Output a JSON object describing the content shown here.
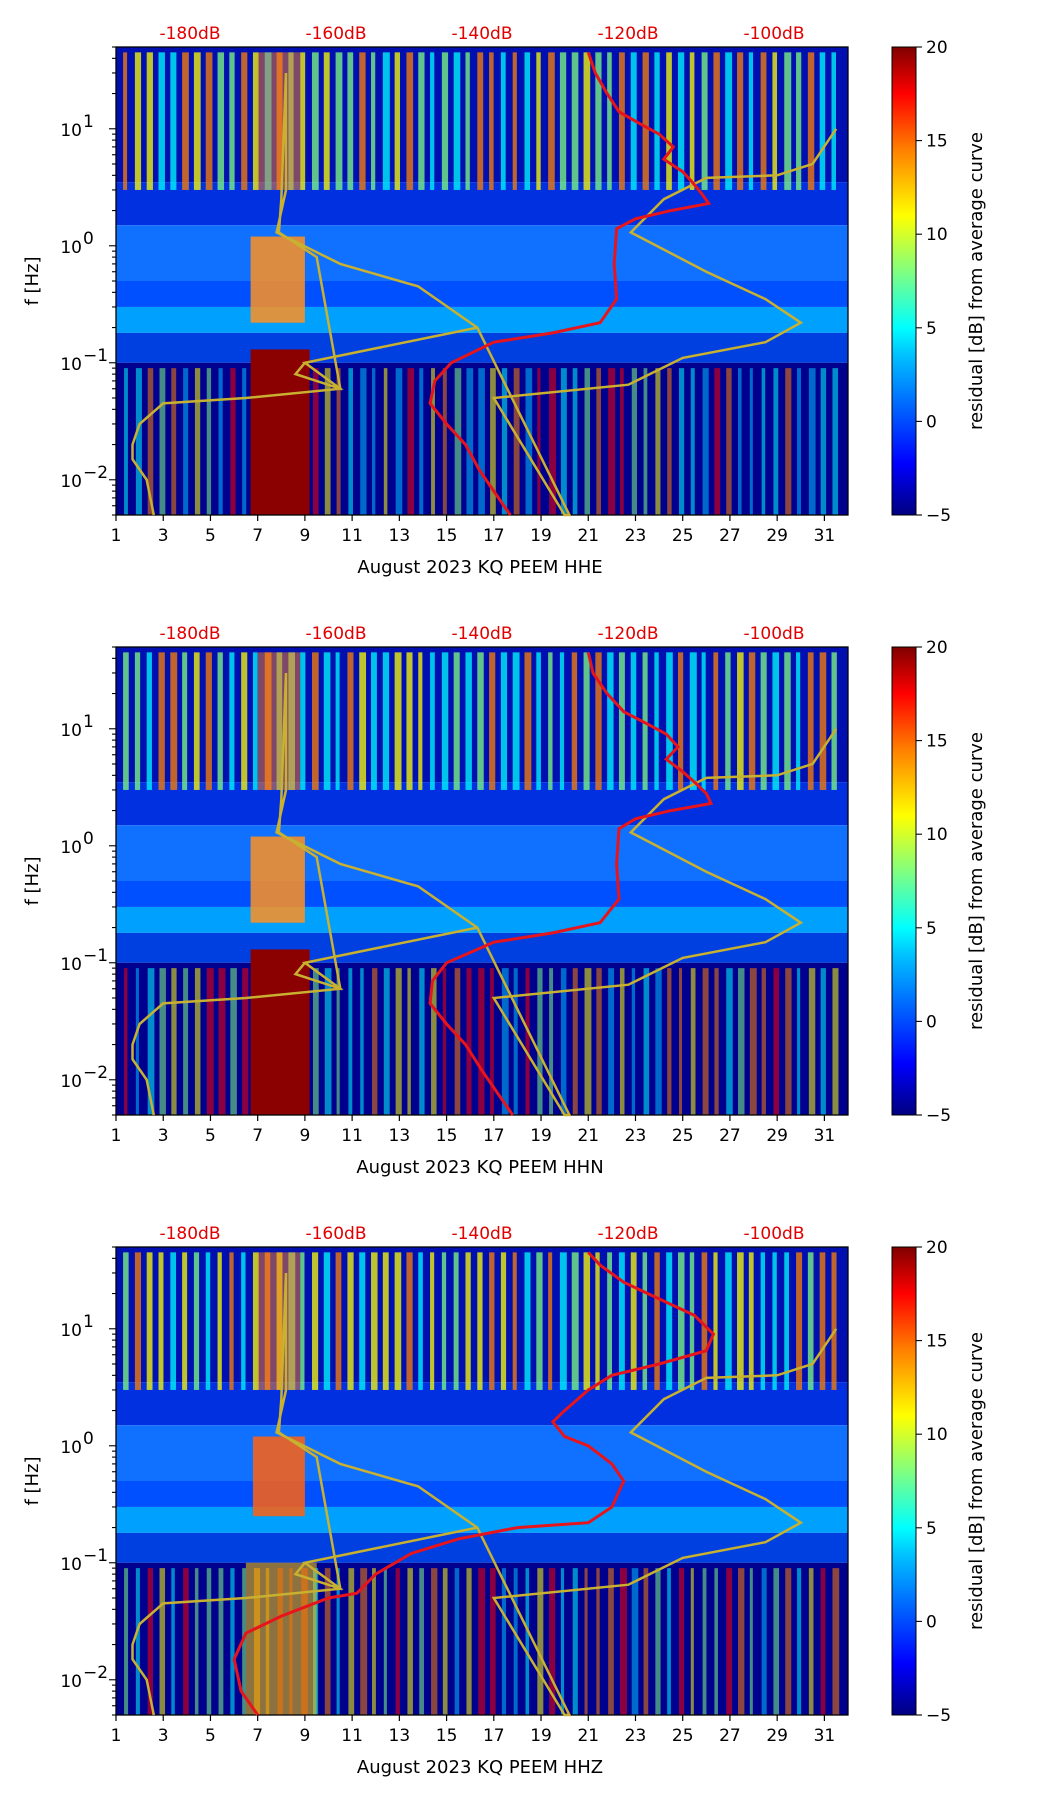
{
  "colors": {
    "curve_red": "#e8141c",
    "curve_olive": "#c8b030",
    "top_axis_text": "#e00000",
    "jet": [
      "#000080",
      "#0000ff",
      "#00c0ff",
      "#00ffff",
      "#80ff80",
      "#ffff00",
      "#ff8000",
      "#ff0000",
      "#800000"
    ]
  },
  "chart_data": [
    {
      "type": "heatmap",
      "title": "",
      "xlabel": "August 2023 KQ PEEM  HHE",
      "ylabel": "f [Hz]",
      "x_range": [
        1,
        32
      ],
      "x_ticks": [
        1,
        3,
        5,
        7,
        9,
        11,
        13,
        15,
        17,
        19,
        21,
        23,
        25,
        27,
        29,
        31
      ],
      "y_scale": "log",
      "y_range": [
        0.005,
        50
      ],
      "y_ticks": [
        {
          "value": 0.01,
          "base": "10",
          "exp": "−2"
        },
        {
          "value": 0.1,
          "base": "10",
          "exp": "−1"
        },
        {
          "value": 1,
          "base": "10",
          "exp": "0"
        },
        {
          "value": 10,
          "base": "10",
          "exp": "1"
        }
      ],
      "top_axis_labels": [
        "-180dB",
        "-160dB",
        "-140dB",
        "-120dB",
        "-100dB"
      ],
      "colorbar": {
        "label": "residual [dB] from average curve",
        "min": -5,
        "max": 20,
        "ticks": [
          "−5",
          "0",
          "5",
          "10",
          "15",
          "20"
        ]
      },
      "red_curve": [
        [
          21.0,
          45
        ],
        [
          21.3,
          30
        ],
        [
          21.8,
          20
        ],
        [
          22.3,
          14
        ],
        [
          23.2,
          11
        ],
        [
          24.0,
          9
        ],
        [
          24.6,
          7
        ],
        [
          24.2,
          5.5
        ],
        [
          25.0,
          4.3
        ],
        [
          25.4,
          3.5
        ],
        [
          25.8,
          2.8
        ],
        [
          26.1,
          2.3
        ],
        [
          24.5,
          2.0
        ],
        [
          23.0,
          1.7
        ],
        [
          22.2,
          1.4
        ],
        [
          22.1,
          0.7
        ],
        [
          22.2,
          0.35
        ],
        [
          21.5,
          0.22
        ],
        [
          19.5,
          0.18
        ],
        [
          17.0,
          0.15
        ],
        [
          15.2,
          0.1
        ],
        [
          14.5,
          0.07
        ],
        [
          14.3,
          0.045
        ],
        [
          15.0,
          0.03
        ],
        [
          15.8,
          0.02
        ],
        [
          16.4,
          0.012
        ],
        [
          17.0,
          0.008
        ],
        [
          17.7,
          0.005
        ]
      ],
      "olive_curve": [
        [
          31.5,
          10
        ],
        [
          30.5,
          5
        ],
        [
          29.0,
          4
        ],
        [
          26.0,
          3.8
        ],
        [
          24.2,
          2.5
        ],
        [
          22.8,
          1.3
        ],
        [
          26.0,
          0.6
        ],
        [
          28.5,
          0.35
        ],
        [
          30.0,
          0.22
        ],
        [
          28.5,
          0.15
        ],
        [
          25.0,
          0.11
        ],
        [
          22.7,
          0.065
        ],
        [
          17.0,
          0.05
        ],
        [
          20.0,
          0.005
        ],
        [
          20.2,
          0.005
        ],
        [
          16.3,
          0.2
        ],
        [
          13.8,
          0.45
        ],
        [
          10.5,
          0.7
        ],
        [
          7.8,
          1.3
        ],
        [
          8.2,
          3
        ],
        [
          8.2,
          30
        ],
        [
          8.0,
          2.5
        ],
        [
          7.9,
          1.3
        ],
        [
          9.5,
          0.8
        ],
        [
          10.5,
          0.06
        ],
        [
          8.6,
          0.08
        ],
        [
          9.0,
          0.1
        ],
        [
          16.3,
          0.2
        ],
        [
          9.0,
          0.1
        ],
        [
          10.5,
          0.06
        ],
        [
          6.5,
          0.05
        ],
        [
          3.0,
          0.045
        ],
        [
          2.0,
          0.03
        ],
        [
          1.7,
          0.02
        ],
        [
          1.7,
          0.015
        ],
        [
          2.3,
          0.01
        ],
        [
          2.6,
          0.005
        ]
      ]
    },
    {
      "type": "heatmap",
      "title": "",
      "xlabel": "August 2023 KQ PEEM  HHN",
      "ylabel": "f [Hz]",
      "x_range": [
        1,
        32
      ],
      "x_ticks": [
        1,
        3,
        5,
        7,
        9,
        11,
        13,
        15,
        17,
        19,
        21,
        23,
        25,
        27,
        29,
        31
      ],
      "y_scale": "log",
      "y_range": [
        0.005,
        50
      ],
      "y_ticks": [
        {
          "value": 0.01,
          "base": "10",
          "exp": "−2"
        },
        {
          "value": 0.1,
          "base": "10",
          "exp": "−1"
        },
        {
          "value": 1,
          "base": "10",
          "exp": "0"
        },
        {
          "value": 10,
          "base": "10",
          "exp": "1"
        }
      ],
      "top_axis_labels": [
        "-180dB",
        "-160dB",
        "-140dB",
        "-120dB",
        "-100dB"
      ],
      "colorbar": {
        "label": "residual [dB] from average curve",
        "min": -5,
        "max": 20,
        "ticks": [
          "−5",
          "0",
          "5",
          "10",
          "15",
          "20"
        ]
      },
      "red_curve": [
        [
          21.0,
          45
        ],
        [
          21.2,
          30
        ],
        [
          21.8,
          20
        ],
        [
          22.5,
          14
        ],
        [
          23.5,
          11
        ],
        [
          24.3,
          9
        ],
        [
          24.8,
          7
        ],
        [
          24.3,
          5.5
        ],
        [
          25.0,
          4.3
        ],
        [
          25.5,
          3.5
        ],
        [
          26.0,
          2.8
        ],
        [
          26.2,
          2.3
        ],
        [
          24.5,
          2.0
        ],
        [
          23.0,
          1.7
        ],
        [
          22.3,
          1.4
        ],
        [
          22.2,
          0.7
        ],
        [
          22.3,
          0.35
        ],
        [
          21.5,
          0.22
        ],
        [
          19.5,
          0.18
        ],
        [
          17.0,
          0.15
        ],
        [
          15.0,
          0.1
        ],
        [
          14.4,
          0.07
        ],
        [
          14.3,
          0.045
        ],
        [
          15.0,
          0.03
        ],
        [
          15.8,
          0.02
        ],
        [
          16.5,
          0.012
        ],
        [
          17.1,
          0.008
        ],
        [
          17.8,
          0.005
        ]
      ],
      "olive_curve": [
        [
          31.5,
          10
        ],
        [
          30.5,
          5
        ],
        [
          29.0,
          4
        ],
        [
          26.0,
          3.8
        ],
        [
          24.2,
          2.5
        ],
        [
          22.8,
          1.3
        ],
        [
          26.0,
          0.6
        ],
        [
          28.5,
          0.35
        ],
        [
          30.0,
          0.22
        ],
        [
          28.5,
          0.15
        ],
        [
          25.0,
          0.11
        ],
        [
          22.7,
          0.065
        ],
        [
          17.0,
          0.05
        ],
        [
          20.0,
          0.005
        ],
        [
          20.2,
          0.005
        ],
        [
          16.3,
          0.2
        ],
        [
          13.8,
          0.45
        ],
        [
          10.5,
          0.7
        ],
        [
          7.8,
          1.3
        ],
        [
          8.2,
          3
        ],
        [
          8.2,
          30
        ],
        [
          8.0,
          2.5
        ],
        [
          7.9,
          1.3
        ],
        [
          9.5,
          0.8
        ],
        [
          10.5,
          0.06
        ],
        [
          8.6,
          0.08
        ],
        [
          9.0,
          0.1
        ],
        [
          16.3,
          0.2
        ],
        [
          9.0,
          0.1
        ],
        [
          10.5,
          0.06
        ],
        [
          6.5,
          0.05
        ],
        [
          3.0,
          0.045
        ],
        [
          2.0,
          0.03
        ],
        [
          1.7,
          0.02
        ],
        [
          1.7,
          0.015
        ],
        [
          2.3,
          0.01
        ],
        [
          2.6,
          0.005
        ]
      ]
    },
    {
      "type": "heatmap",
      "title": "",
      "xlabel": "August 2023 KQ PEEM  HHZ",
      "ylabel": "f [Hz]",
      "x_range": [
        1,
        32
      ],
      "x_ticks": [
        1,
        3,
        5,
        7,
        9,
        11,
        13,
        15,
        17,
        19,
        21,
        23,
        25,
        27,
        29,
        31
      ],
      "y_scale": "log",
      "y_range": [
        0.005,
        50
      ],
      "y_ticks": [
        {
          "value": 0.01,
          "base": "10",
          "exp": "−2"
        },
        {
          "value": 0.1,
          "base": "10",
          "exp": "−1"
        },
        {
          "value": 1,
          "base": "10",
          "exp": "0"
        },
        {
          "value": 10,
          "base": "10",
          "exp": "1"
        }
      ],
      "top_axis_labels": [
        "-180dB",
        "-160dB",
        "-140dB",
        "-120dB",
        "-100dB"
      ],
      "colorbar": {
        "label": "residual [dB] from average curve",
        "min": -5,
        "max": 20,
        "ticks": [
          "−5",
          "0",
          "5",
          "10",
          "15",
          "20"
        ]
      },
      "red_curve": [
        [
          21.0,
          45
        ],
        [
          21.5,
          35
        ],
        [
          22.5,
          25
        ],
        [
          24.0,
          18
        ],
        [
          25.5,
          13
        ],
        [
          26.3,
          9
        ],
        [
          26.0,
          6.5
        ],
        [
          24.0,
          5
        ],
        [
          22.0,
          4
        ],
        [
          21.0,
          3
        ],
        [
          20.0,
          2
        ],
        [
          19.5,
          1.6
        ],
        [
          20.0,
          1.2
        ],
        [
          21.0,
          1.0
        ],
        [
          22.0,
          0.7
        ],
        [
          22.5,
          0.5
        ],
        [
          22.0,
          0.3
        ],
        [
          21.0,
          0.22
        ],
        [
          18.0,
          0.2
        ],
        [
          15.5,
          0.16
        ],
        [
          13.5,
          0.12
        ],
        [
          12.0,
          0.08
        ],
        [
          11.2,
          0.055
        ],
        [
          10.0,
          0.05
        ],
        [
          8.0,
          0.035
        ],
        [
          6.5,
          0.025
        ],
        [
          6.0,
          0.015
        ],
        [
          6.3,
          0.008
        ],
        [
          7.0,
          0.005
        ]
      ],
      "olive_curve": [
        [
          31.5,
          10
        ],
        [
          30.5,
          5
        ],
        [
          29.0,
          4
        ],
        [
          26.0,
          3.8
        ],
        [
          24.2,
          2.5
        ],
        [
          22.8,
          1.3
        ],
        [
          26.0,
          0.6
        ],
        [
          28.5,
          0.35
        ],
        [
          30.0,
          0.22
        ],
        [
          28.5,
          0.15
        ],
        [
          25.0,
          0.11
        ],
        [
          22.7,
          0.065
        ],
        [
          17.0,
          0.05
        ],
        [
          20.0,
          0.005
        ],
        [
          20.2,
          0.005
        ],
        [
          16.3,
          0.2
        ],
        [
          13.8,
          0.45
        ],
        [
          10.5,
          0.7
        ],
        [
          7.8,
          1.3
        ],
        [
          8.2,
          3
        ],
        [
          8.2,
          30
        ],
        [
          8.0,
          2.5
        ],
        [
          7.9,
          1.3
        ],
        [
          9.5,
          0.8
        ],
        [
          10.5,
          0.06
        ],
        [
          8.6,
          0.08
        ],
        [
          9.0,
          0.1
        ],
        [
          16.3,
          0.2
        ],
        [
          9.0,
          0.1
        ],
        [
          10.5,
          0.06
        ],
        [
          6.5,
          0.05
        ],
        [
          3.0,
          0.045
        ],
        [
          2.0,
          0.03
        ],
        [
          1.7,
          0.02
        ],
        [
          1.7,
          0.015
        ],
        [
          2.3,
          0.01
        ],
        [
          2.6,
          0.005
        ]
      ]
    }
  ]
}
